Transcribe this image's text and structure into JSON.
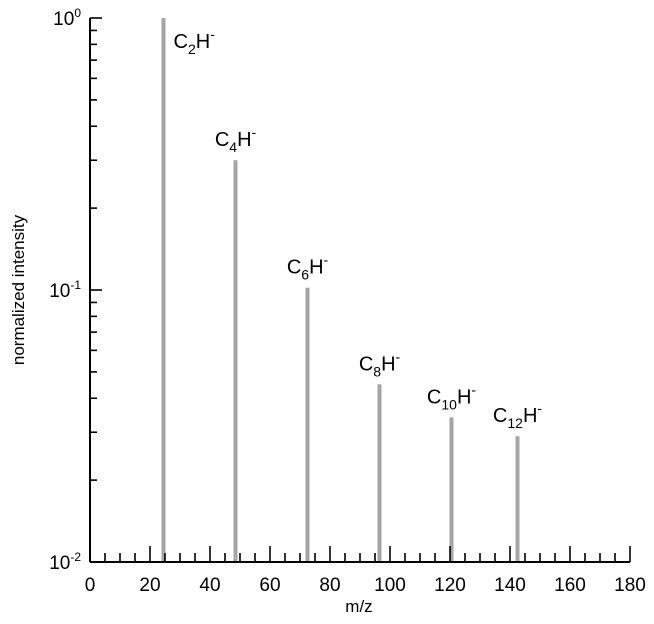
{
  "chart_data": {
    "type": "bar",
    "title": "",
    "xlabel": "m/z",
    "ylabel": "normalized intensity",
    "x_scale": "linear",
    "y_scale": "log",
    "xlim": [
      0,
      180
    ],
    "ylim": [
      0.01,
      1
    ],
    "x_ticks": [
      0,
      20,
      40,
      60,
      80,
      100,
      120,
      140,
      160,
      180
    ],
    "y_ticks": [
      {
        "value": 0.01,
        "base": "10",
        "exp": "-2"
      },
      {
        "value": 0.1,
        "base": "10",
        "exp": "-1"
      },
      {
        "value": 1,
        "base": "10",
        "exp": "0"
      }
    ],
    "grid": false,
    "peaks": [
      {
        "mz": 24.5,
        "intensity": 1.0,
        "label": {
          "base": "C",
          "sub": "2",
          "mid": "H",
          "sup": "-"
        }
      },
      {
        "mz": 48.5,
        "intensity": 0.3,
        "label": {
          "base": "C",
          "sub": "4",
          "mid": "H",
          "sup": "-"
        }
      },
      {
        "mz": 72.5,
        "intensity": 0.102,
        "label": {
          "base": "C",
          "sub": "6",
          "mid": "H",
          "sup": "-"
        }
      },
      {
        "mz": 96.5,
        "intensity": 0.045,
        "label": {
          "base": "C",
          "sub": "8",
          "mid": "H",
          "sup": "-"
        }
      },
      {
        "mz": 120.5,
        "intensity": 0.034,
        "label": {
          "base": "C",
          "sub": "10",
          "mid": "H",
          "sup": "-"
        }
      },
      {
        "mz": 142.5,
        "intensity": 0.029,
        "label": {
          "base": "C",
          "sub": "12",
          "mid": "H",
          "sup": "-"
        }
      }
    ]
  }
}
